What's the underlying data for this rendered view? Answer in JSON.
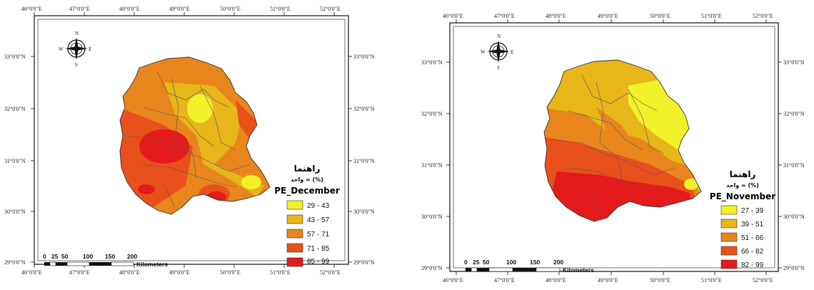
{
  "maps": [
    {
      "id": "december",
      "top_labels": [
        "46°0'0\"E",
        "47°0'0\"E",
        "48°0'0\"E",
        "49°0'0\"E",
        "50°0'0\"E",
        "51°0'0\"E",
        "52°0'0\"E"
      ],
      "bottom_labels": [
        "46°0'0\"E",
        "47°0'0\"E",
        "48°0'0\"E",
        "49°0'0\"E",
        "50°0'0\"E",
        "51°0'0\"E",
        "52°0'0\"E"
      ],
      "left_labels": [
        "33°0'0\"N",
        "32°0'0\"N",
        "31°0'0\"N",
        "30°0'0\"N",
        "29°0'0\"N"
      ],
      "right_labels": [
        "33°0'0\"N",
        "32°0'0\"N",
        "31°0'0\"N",
        "30°0'0\"N",
        "29°0'0\"N"
      ],
      "legend": {
        "title": "راهنما",
        "unit": "واحد = (%)",
        "layer": "PE_December",
        "classes": [
          {
            "label": "29 - 43",
            "color": "#f2f22a"
          },
          {
            "label": "43 - 57",
            "color": "#e8b619"
          },
          {
            "label": "57 - 71",
            "color": "#e8861d"
          },
          {
            "label": "71 - 85",
            "color": "#e8501c"
          },
          {
            "label": "85 - 99",
            "color": "#e51b1b"
          }
        ]
      },
      "scale": {
        "ticks": [
          "0",
          "25",
          "50",
          "100",
          "150",
          "200"
        ],
        "unit": "Kilometers"
      },
      "north_arrow": {
        "n": "N",
        "s": "S",
        "e": "E",
        "w": "W"
      }
    },
    {
      "id": "november",
      "top_labels": [
        "46°0'0\"E",
        "47°0'0\"E",
        "48°0'0\"E",
        "49°0'0\"E",
        "50°0'0\"E",
        "51°0'0\"E",
        "52°0'0\"E"
      ],
      "bottom_labels": [
        "46°0'0\"E",
        "47°0'0\"E",
        "48°0'0\"E",
        "49°0'0\"E",
        "50°0'0\"E",
        "51°0'0\"E",
        "52°0'0\"E"
      ],
      "left_labels": [
        "33°0'0\"N",
        "32°0'0\"N",
        "31°0'0\"N",
        "30°0'0\"N",
        "29°0'0\"N"
      ],
      "right_labels": [
        "33°0'0\"N",
        "32°0'0\"N",
        "31°0'0\"N",
        "30°0'0\"N",
        "29°0'0\"N"
      ],
      "legend": {
        "title": "راهنما",
        "unit": "واحد = (%)",
        "layer": "PE_November",
        "classes": [
          {
            "label": "27 - 39",
            "color": "#f2f22a"
          },
          {
            "label": "39 - 51",
            "color": "#e8b619"
          },
          {
            "label": "51 - 66",
            "color": "#e8861d"
          },
          {
            "label": "66 - 82",
            "color": "#e8501c"
          },
          {
            "label": "82 - 99",
            "color": "#e51b1b"
          }
        ]
      },
      "scale": {
        "ticks": [
          "0",
          "25",
          "50",
          "100",
          "150",
          "200"
        ],
        "unit": "Kilometers"
      },
      "north_arrow": {
        "n": "N",
        "s": "S",
        "e": "E",
        "w": "W"
      }
    }
  ]
}
